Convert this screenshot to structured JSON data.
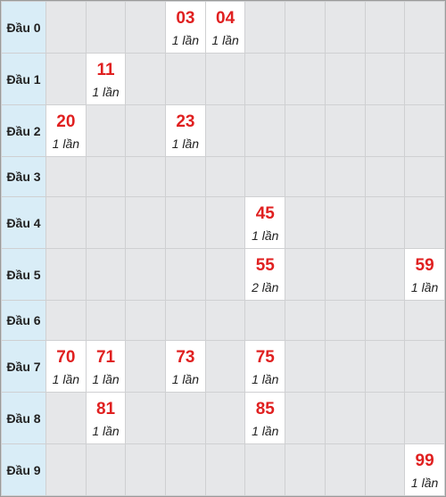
{
  "rows": [
    {
      "label": "Đầu 0",
      "cells": [
        null,
        null,
        null,
        {
          "num": "03",
          "count": "1 lần"
        },
        {
          "num": "04",
          "count": "1 lần"
        },
        null,
        null,
        null,
        null,
        null
      ]
    },
    {
      "label": "Đầu 1",
      "cells": [
        null,
        {
          "num": "11",
          "count": "1 lần"
        },
        null,
        null,
        null,
        null,
        null,
        null,
        null,
        null
      ]
    },
    {
      "label": "Đầu 2",
      "cells": [
        {
          "num": "20",
          "count": "1 lần"
        },
        null,
        null,
        {
          "num": "23",
          "count": "1 lần"
        },
        null,
        null,
        null,
        null,
        null,
        null
      ]
    },
    {
      "label": "Đầu 3",
      "cells": [
        null,
        null,
        null,
        null,
        null,
        null,
        null,
        null,
        null,
        null
      ]
    },
    {
      "label": "Đầu 4",
      "cells": [
        null,
        null,
        null,
        null,
        null,
        {
          "num": "45",
          "count": "1 lần"
        },
        null,
        null,
        null,
        null
      ]
    },
    {
      "label": "Đầu 5",
      "cells": [
        null,
        null,
        null,
        null,
        null,
        {
          "num": "55",
          "count": "2 lần"
        },
        null,
        null,
        null,
        {
          "num": "59",
          "count": "1 lần"
        }
      ]
    },
    {
      "label": "Đầu 6",
      "cells": [
        null,
        null,
        null,
        null,
        null,
        null,
        null,
        null,
        null,
        null
      ]
    },
    {
      "label": "Đầu 7",
      "cells": [
        {
          "num": "70",
          "count": "1 lần"
        },
        {
          "num": "71",
          "count": "1 lần"
        },
        null,
        {
          "num": "73",
          "count": "1 lần"
        },
        null,
        {
          "num": "75",
          "count": "1 lần"
        },
        null,
        null,
        null,
        null
      ]
    },
    {
      "label": "Đầu 8",
      "cells": [
        null,
        {
          "num": "81",
          "count": "1 lần"
        },
        null,
        null,
        null,
        {
          "num": "85",
          "count": "1 lần"
        },
        null,
        null,
        null,
        null
      ]
    },
    {
      "label": "Đầu 9",
      "cells": [
        null,
        null,
        null,
        null,
        null,
        null,
        null,
        null,
        null,
        {
          "num": "99",
          "count": "1 lần"
        }
      ]
    }
  ],
  "colors": {
    "number": "#e02020",
    "header_bg": "#d9edf7",
    "empty_bg": "#e6e7e9",
    "filled_bg": "#ffffff"
  }
}
